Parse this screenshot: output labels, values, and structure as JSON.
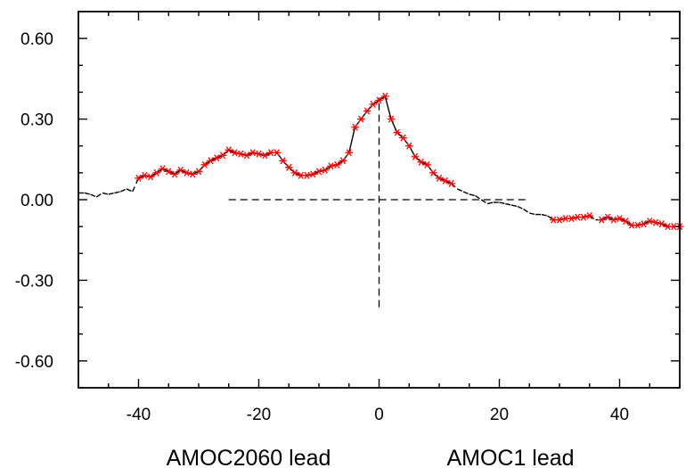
{
  "chart_data": {
    "type": "line",
    "xlim": [
      -50,
      50
    ],
    "ylim": [
      -0.7,
      0.7
    ],
    "x_ticks": [
      -40,
      -20,
      0,
      20,
      40
    ],
    "x_tick_labels": [
      "-40",
      "-20",
      "0",
      "20",
      "40"
    ],
    "y_ticks": [
      0.6,
      0.3,
      0.0,
      -0.3,
      -0.6
    ],
    "y_tick_labels": [
      "0.60",
      "0.30",
      "0.00",
      "-0.30",
      "-0.60"
    ],
    "xlabel_left": "AMOC2060 lead",
    "xlabel_right": "AMOC1 lead",
    "series_color": "#000000",
    "marker_color": "#ff0000",
    "grid": false,
    "reference_lines": {
      "horizontal": {
        "y": 0.0,
        "x_from": -25,
        "x_to": 25
      },
      "vertical": {
        "x": 0,
        "y_from": -0.4,
        "y_to": 0.38
      }
    },
    "series": [
      {
        "x": [
          -50,
          -49,
          -48,
          -47,
          -46,
          -45,
          -44,
          -43,
          -42,
          -41,
          -40,
          -39,
          -38,
          -37,
          -36,
          -35,
          -34,
          -33,
          -32,
          -31,
          -30,
          -29,
          -28,
          -27,
          -26,
          -25,
          -24,
          -23,
          -22,
          -21,
          -20,
          -19,
          -18,
          -17,
          -16,
          -15,
          -14,
          -13,
          -12,
          -11,
          -10,
          -9,
          -8,
          -7,
          -6,
          -5,
          -4,
          -3,
          -2,
          -1,
          0,
          1,
          2,
          3,
          4,
          5,
          6,
          7,
          8,
          9,
          10,
          11,
          12,
          13,
          14,
          15,
          16,
          17,
          18,
          19,
          20,
          21,
          22,
          23,
          24,
          25,
          26,
          27,
          28,
          29,
          30,
          31,
          32,
          33,
          34,
          35,
          36,
          37,
          38,
          39,
          40,
          41,
          42,
          43,
          44,
          45,
          46,
          47,
          48,
          49,
          50
        ],
        "y": [
          0.025,
          0.025,
          0.02,
          0.01,
          0.025,
          0.02,
          0.025,
          0.03,
          0.04,
          0.03,
          0.08,
          0.09,
          0.085,
          0.1,
          0.115,
          0.105,
          0.095,
          0.11,
          0.1,
          0.095,
          0.105,
          0.13,
          0.145,
          0.155,
          0.165,
          0.185,
          0.175,
          0.17,
          0.165,
          0.175,
          0.17,
          0.165,
          0.175,
          0.175,
          0.145,
          0.12,
          0.1,
          0.09,
          0.09,
          0.095,
          0.105,
          0.11,
          0.125,
          0.13,
          0.145,
          0.175,
          0.27,
          0.3,
          0.33,
          0.355,
          0.37,
          0.385,
          0.3,
          0.25,
          0.23,
          0.2,
          0.16,
          0.14,
          0.13,
          0.1,
          0.08,
          0.07,
          0.06,
          0.04,
          0.03,
          0.02,
          0.015,
          0.0,
          -0.015,
          -0.01,
          -0.01,
          -0.015,
          -0.02,
          -0.025,
          -0.035,
          -0.05,
          -0.055,
          -0.055,
          -0.06,
          -0.075,
          -0.075,
          -0.07,
          -0.07,
          -0.065,
          -0.065,
          -0.06,
          -0.075,
          -0.075,
          -0.065,
          -0.075,
          -0.07,
          -0.08,
          -0.095,
          -0.095,
          -0.09,
          -0.08,
          -0.085,
          -0.09,
          -0.1,
          -0.1,
          -0.1
        ],
        "significant_x": [
          -40,
          -39,
          -38,
          -37,
          -36,
          -35,
          -34,
          -33,
          -32,
          -31,
          -30,
          -29,
          -28,
          -27,
          -26,
          -25,
          -24,
          -23,
          -22,
          -21,
          -20,
          -19,
          -18,
          -17,
          -16,
          -15,
          -14,
          -13,
          -12,
          -11,
          -10,
          -9,
          -8,
          -7,
          -6,
          -5,
          -4,
          -3,
          -2,
          -1,
          0,
          1,
          2,
          3,
          4,
          5,
          6,
          7,
          8,
          9,
          10,
          11,
          12,
          29,
          30,
          31,
          32,
          33,
          34,
          35,
          37,
          38,
          39,
          40,
          41,
          42,
          43,
          44,
          45,
          46,
          47,
          48,
          49,
          50
        ]
      }
    ]
  }
}
